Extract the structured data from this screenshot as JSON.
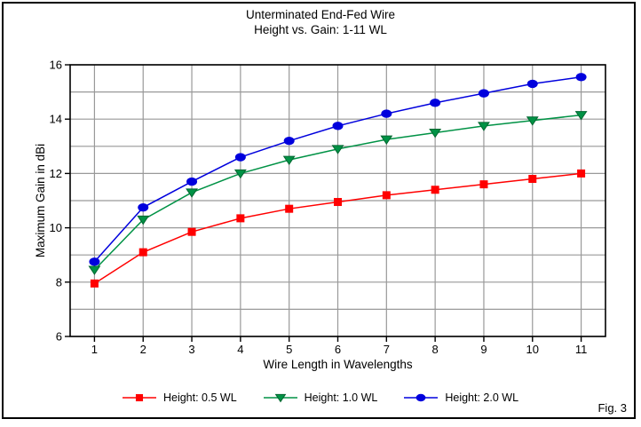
{
  "figure": {
    "title_line1": "Unterminated End-Fed Wire",
    "title_line2": "Height vs. Gain: 1-11 WL",
    "fig_label": "Fig. 3"
  },
  "chart_data": {
    "type": "line",
    "title": "Unterminated End-Fed Wire",
    "subtitle": "Height vs. Gain: 1-11 WL",
    "xlabel": "Wire Length in Wavelengths",
    "ylabel": "Maximum Gain in dBi",
    "xlim": [
      0.5,
      11.5
    ],
    "ylim": [
      6,
      16
    ],
    "x": [
      1,
      2,
      3,
      4,
      5,
      6,
      7,
      8,
      9,
      10,
      11
    ],
    "xticks": [
      1,
      2,
      3,
      4,
      5,
      6,
      7,
      8,
      9,
      10,
      11
    ],
    "yticks_labeled": [
      6,
      8,
      10,
      12,
      14,
      16
    ],
    "ygrid_step": 1,
    "grid": true,
    "legend_position": "bottom",
    "colors": {
      "grid": "#999999",
      "axis": "#000000",
      "background": "#ffffff"
    },
    "series": [
      {
        "name": "Height: 0.5 WL",
        "marker": "square",
        "color": "#ff0000",
        "values": [
          7.95,
          9.1,
          9.85,
          10.35,
          10.7,
          10.95,
          11.2,
          11.4,
          11.6,
          11.8,
          12.0
        ]
      },
      {
        "name": "Height: 1.0 WL",
        "marker": "triangle-down",
        "color": "#009245",
        "values": [
          8.45,
          10.3,
          11.3,
          12.0,
          12.5,
          12.9,
          13.25,
          13.5,
          13.75,
          13.95,
          14.15
        ]
      },
      {
        "name": "Height: 2.0 WL",
        "marker": "circle",
        "color": "#0000dd",
        "values": [
          8.75,
          10.75,
          11.7,
          12.6,
          13.2,
          13.75,
          14.2,
          14.6,
          14.95,
          15.3,
          15.55
        ]
      }
    ]
  }
}
